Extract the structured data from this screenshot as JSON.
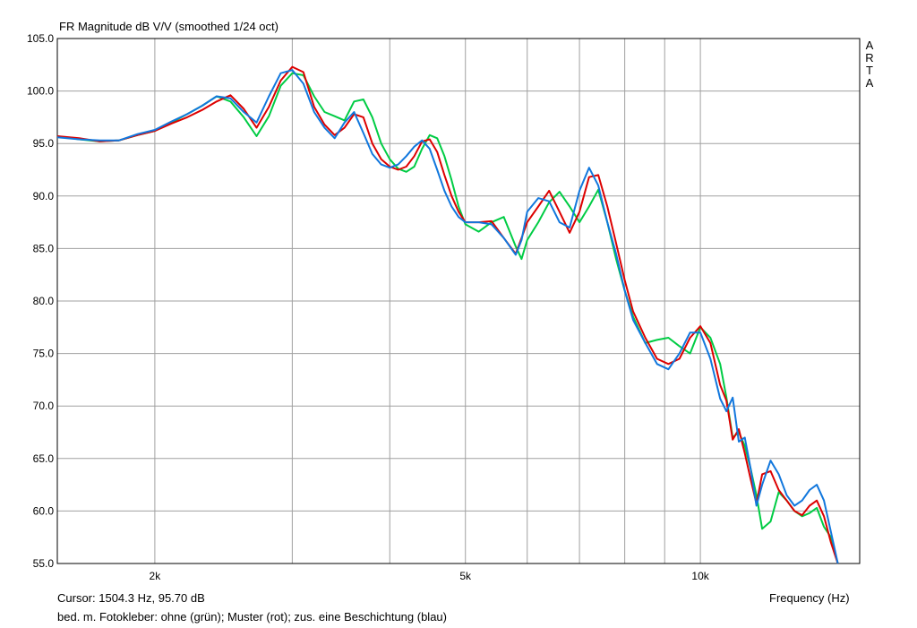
{
  "chart_data": {
    "type": "line",
    "title": "FR Magnitude dB V/V (smoothed 1/24 oct)",
    "xlabel": "Frequency (Hz)",
    "ylabel": "",
    "x_scale": "log",
    "xlim": [
      1500,
      16000
    ],
    "ylim": [
      55,
      105
    ],
    "x_ticks": [
      2000,
      5000,
      10000
    ],
    "x_tick_labels": [
      "2k",
      "5k",
      "10k"
    ],
    "y_ticks": [
      55,
      60,
      65,
      70,
      75,
      80,
      85,
      90,
      95,
      100,
      105
    ],
    "y_tick_labels": [
      "55.0",
      "60.0",
      "65.0",
      "70.0",
      "75.0",
      "80.0",
      "85.0",
      "90.0",
      "95.0",
      "100.0",
      "105.0"
    ],
    "x_gridlines": [
      2000,
      3000,
      4000,
      5000,
      6000,
      7000,
      8000,
      9000,
      10000
    ],
    "grid": true,
    "series": [
      {
        "color": "#00cc44",
        "x": [
          1500,
          1600,
          1700,
          1800,
          1900,
          2000,
          2100,
          2200,
          2300,
          2400,
          2500,
          2600,
          2700,
          2800,
          2900,
          3000,
          3100,
          3200,
          3300,
          3400,
          3500,
          3600,
          3700,
          3800,
          3900,
          4000,
          4100,
          4200,
          4300,
          4400,
          4500,
          4600,
          4700,
          4800,
          4900,
          5000,
          5200,
          5400,
          5600,
          5800,
          5900,
          6000,
          6200,
          6400,
          6600,
          6800,
          7000,
          7200,
          7400,
          7600,
          7800,
          8000,
          8200,
          8500,
          8800,
          9100,
          9400,
          9700,
          10000,
          10300,
          10600,
          10800,
          11000,
          11200,
          11400,
          11600,
          11800,
          12000,
          12300,
          12600,
          12900,
          13200,
          13500,
          13800,
          14100,
          14400,
          14700,
          15000
        ],
        "values": [
          95.7,
          95.4,
          95.2,
          95.3,
          95.8,
          96.2,
          97.0,
          97.8,
          98.6,
          99.5,
          99.0,
          97.5,
          95.7,
          97.6,
          100.5,
          101.7,
          101.5,
          99.5,
          98.0,
          97.6,
          97.2,
          99.0,
          99.2,
          97.5,
          95.0,
          93.5,
          92.6,
          92.3,
          92.8,
          94.5,
          95.8,
          95.5,
          93.8,
          91.5,
          89.0,
          87.3,
          86.6,
          87.5,
          88.0,
          85.2,
          84.0,
          85.8,
          87.5,
          89.4,
          90.4,
          89.0,
          87.5,
          89.0,
          90.6,
          87.5,
          84.0,
          81.0,
          78.5,
          76.0,
          76.3,
          76.5,
          75.7,
          75.0,
          77.5,
          76.5,
          74.0,
          70.8,
          67.0,
          67.5,
          66.2,
          64.0,
          61.5,
          58.3,
          59.0,
          61.8,
          61.0,
          60.0,
          59.5,
          59.8,
          60.3,
          58.5,
          57.5,
          55.0
        ]
      },
      {
        "color": "#dd0000",
        "x": [
          1500,
          1600,
          1700,
          1800,
          1900,
          2000,
          2100,
          2200,
          2300,
          2400,
          2500,
          2600,
          2700,
          2800,
          2900,
          3000,
          3100,
          3200,
          3300,
          3400,
          3500,
          3600,
          3700,
          3800,
          3900,
          4000,
          4100,
          4200,
          4300,
          4400,
          4500,
          4600,
          4700,
          4800,
          4900,
          5000,
          5200,
          5400,
          5600,
          5800,
          5900,
          6000,
          6200,
          6400,
          6600,
          6800,
          7000,
          7200,
          7400,
          7600,
          7800,
          8000,
          8200,
          8500,
          8800,
          9100,
          9400,
          9700,
          10000,
          10300,
          10600,
          10800,
          11000,
          11200,
          11400,
          11600,
          11800,
          12000,
          12300,
          12600,
          12900,
          13200,
          13500,
          13800,
          14100,
          14400,
          14700,
          15000
        ],
        "values": [
          95.7,
          95.5,
          95.2,
          95.3,
          95.8,
          96.2,
          96.9,
          97.5,
          98.2,
          99.0,
          99.6,
          98.3,
          96.5,
          98.5,
          101.0,
          102.3,
          101.8,
          98.5,
          96.8,
          95.8,
          96.5,
          97.8,
          97.5,
          95.0,
          93.5,
          92.8,
          92.5,
          92.8,
          93.8,
          95.2,
          95.4,
          94.2,
          92.0,
          90.0,
          88.5,
          87.5,
          87.5,
          87.6,
          86.0,
          84.5,
          86.0,
          87.5,
          89.0,
          90.5,
          88.5,
          86.5,
          88.5,
          91.8,
          92.0,
          89.0,
          85.5,
          82.0,
          79.0,
          76.5,
          74.5,
          74.0,
          74.5,
          76.5,
          77.6,
          76.0,
          72.0,
          70.5,
          66.8,
          67.8,
          65.5,
          63.0,
          60.7,
          63.5,
          63.8,
          62.0,
          61.0,
          60.0,
          59.6,
          60.5,
          61.0,
          59.5,
          57.0,
          55.0
        ]
      },
      {
        "color": "#1177dd",
        "x": [
          1500,
          1600,
          1700,
          1800,
          1900,
          2000,
          2100,
          2200,
          2300,
          2400,
          2500,
          2600,
          2700,
          2800,
          2900,
          3000,
          3100,
          3200,
          3300,
          3400,
          3500,
          3600,
          3700,
          3800,
          3900,
          4000,
          4100,
          4200,
          4300,
          4400,
          4500,
          4600,
          4700,
          4800,
          4900,
          5000,
          5200,
          5400,
          5600,
          5800,
          5900,
          6000,
          6200,
          6400,
          6600,
          6800,
          7000,
          7200,
          7400,
          7600,
          7800,
          8000,
          8200,
          8500,
          8800,
          9100,
          9400,
          9700,
          10000,
          10300,
          10600,
          10800,
          11000,
          11200,
          11400,
          11600,
          11800,
          12000,
          12300,
          12600,
          12900,
          13200,
          13500,
          13800,
          14100,
          14400,
          14700,
          15000
        ],
        "values": [
          95.6,
          95.4,
          95.3,
          95.3,
          95.9,
          96.3,
          97.1,
          97.8,
          98.6,
          99.5,
          99.3,
          98.0,
          97.0,
          99.5,
          101.7,
          102.0,
          100.7,
          98.0,
          96.5,
          95.5,
          97.0,
          98.0,
          96.0,
          94.0,
          93.0,
          92.7,
          93.0,
          93.8,
          94.7,
          95.3,
          94.5,
          92.5,
          90.5,
          89.0,
          88.0,
          87.5,
          87.5,
          87.3,
          86.0,
          84.4,
          85.8,
          88.5,
          89.8,
          89.5,
          87.5,
          87.0,
          90.5,
          92.7,
          91.0,
          87.5,
          84.5,
          81.0,
          78.2,
          76.0,
          74.0,
          73.5,
          75.0,
          77.0,
          77.0,
          74.5,
          70.7,
          69.5,
          70.8,
          66.6,
          67.0,
          64.0,
          60.5,
          62.5,
          64.8,
          63.5,
          61.5,
          60.5,
          61.0,
          62.0,
          62.5,
          61.0,
          58.0,
          55.0
        ]
      }
    ]
  },
  "cursor_readout": "Cursor: 1504.3 Hz, 95.70 dB",
  "legend_note": "bed. m. Fotokleber: ohne (grün); Muster (rot); zus. eine Beschichtung (blau)",
  "brand_letters": [
    "A",
    "R",
    "T",
    "A"
  ]
}
